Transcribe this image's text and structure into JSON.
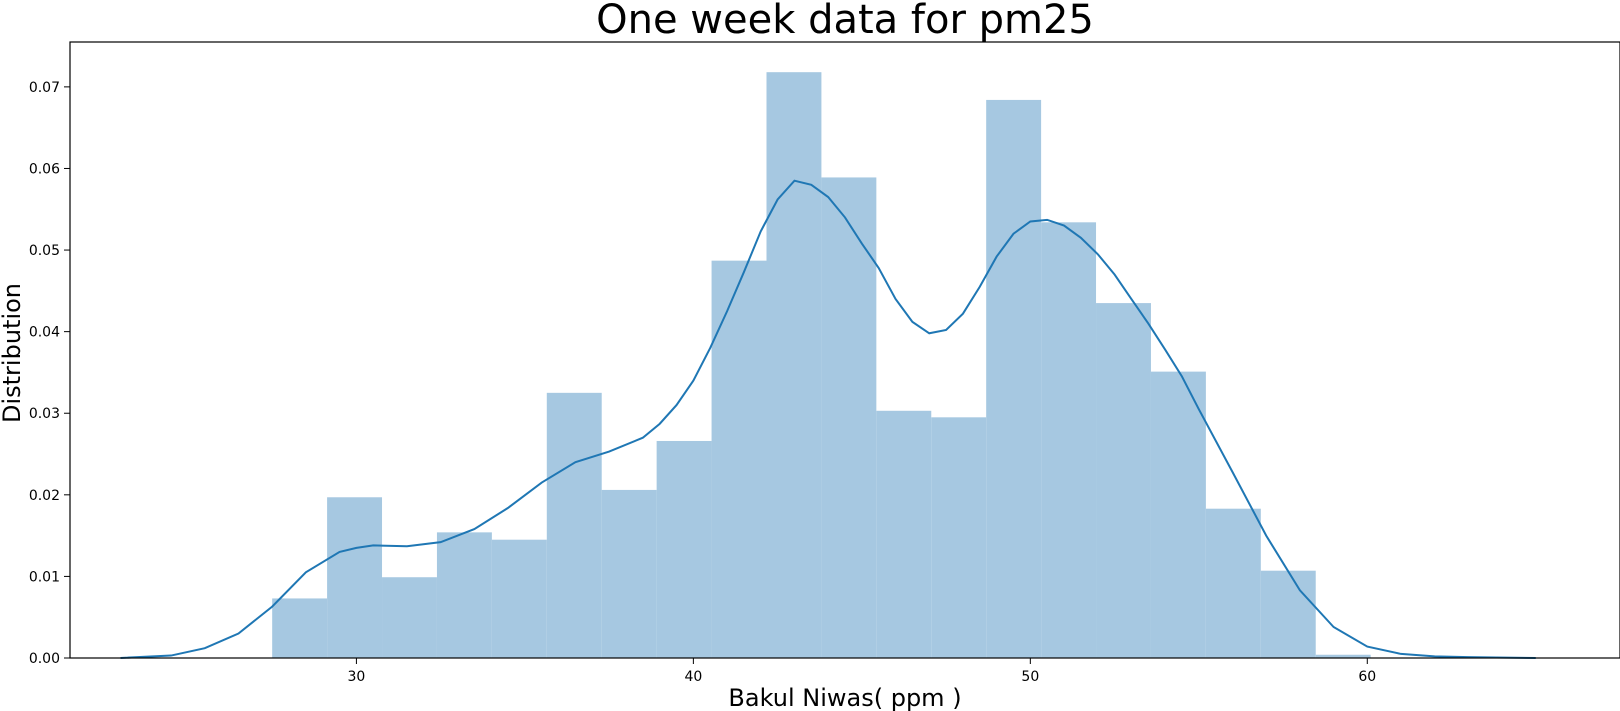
{
  "chart_data": {
    "type": "bar",
    "subtype": "histogram-with-kde",
    "title": "One week data for pm25",
    "xlabel": "Bakul Niwas( ppm )",
    "ylabel": "Distribution",
    "xlim": [
      21.5,
      67.5
    ],
    "ylim": [
      0,
      0.0755
    ],
    "x_ticks": [
      30,
      40,
      50,
      60
    ],
    "y_ticks": [
      0.0,
      0.01,
      0.02,
      0.03,
      0.04,
      0.05,
      0.06,
      0.07
    ],
    "x_tick_labels": [
      "30",
      "40",
      "50",
      "60"
    ],
    "y_tick_labels": [
      "0.00",
      "0.01",
      "0.02",
      "0.03",
      "0.04",
      "0.05",
      "0.06",
      "0.07"
    ],
    "grid": false,
    "legend": "none",
    "bins": [
      {
        "x0": 27.5,
        "x1": 29.13,
        "density": 0.0073
      },
      {
        "x0": 29.13,
        "x1": 30.76,
        "density": 0.0197
      },
      {
        "x0": 30.76,
        "x1": 32.39,
        "density": 0.0099
      },
      {
        "x0": 32.39,
        "x1": 34.02,
        "density": 0.0154
      },
      {
        "x0": 34.02,
        "x1": 35.65,
        "density": 0.0145
      },
      {
        "x0": 35.65,
        "x1": 37.28,
        "density": 0.0325
      },
      {
        "x0": 37.28,
        "x1": 38.91,
        "density": 0.0206
      },
      {
        "x0": 38.91,
        "x1": 40.54,
        "density": 0.0266
      },
      {
        "x0": 40.54,
        "x1": 42.17,
        "density": 0.0487
      },
      {
        "x0": 42.17,
        "x1": 43.8,
        "density": 0.0718
      },
      {
        "x0": 43.8,
        "x1": 45.43,
        "density": 0.0589
      },
      {
        "x0": 45.43,
        "x1": 47.06,
        "density": 0.0303
      },
      {
        "x0": 47.06,
        "x1": 48.69,
        "density": 0.0295
      },
      {
        "x0": 48.69,
        "x1": 50.32,
        "density": 0.0684
      },
      {
        "x0": 50.32,
        "x1": 51.95,
        "density": 0.0534
      },
      {
        "x0": 51.95,
        "x1": 53.58,
        "density": 0.0435
      },
      {
        "x0": 53.58,
        "x1": 55.21,
        "density": 0.0351
      },
      {
        "x0": 55.21,
        "x1": 56.84,
        "density": 0.0183
      },
      {
        "x0": 56.84,
        "x1": 58.47,
        "density": 0.0107
      },
      {
        "x0": 58.47,
        "x1": 60.1,
        "density": 0.0004
      }
    ],
    "kde": {
      "x": [
        23.0,
        24.5,
        25.5,
        26.5,
        27.5,
        28.5,
        29.5,
        30.0,
        30.5,
        31.5,
        32.5,
        33.5,
        34.5,
        35.5,
        36.5,
        37.5,
        38.5,
        39.0,
        39.5,
        40.0,
        40.5,
        41.0,
        41.5,
        42.0,
        42.5,
        43.0,
        43.5,
        44.0,
        44.5,
        45.0,
        45.5,
        46.0,
        46.5,
        47.0,
        47.5,
        48.0,
        48.5,
        49.0,
        49.5,
        50.0,
        50.5,
        51.0,
        51.5,
        52.0,
        52.5,
        53.0,
        53.5,
        54.0,
        54.5,
        55.0,
        56.0,
        57.0,
        58.0,
        59.0,
        60.0,
        61.0,
        62.0,
        63.0,
        65.0
      ],
      "y": [
        0.0,
        0.0003,
        0.0012,
        0.003,
        0.0063,
        0.0105,
        0.013,
        0.0135,
        0.0138,
        0.0137,
        0.0142,
        0.0158,
        0.0184,
        0.0215,
        0.024,
        0.0253,
        0.027,
        0.0287,
        0.031,
        0.034,
        0.038,
        0.0425,
        0.0473,
        0.0523,
        0.0562,
        0.0585,
        0.058,
        0.0565,
        0.054,
        0.0508,
        0.0478,
        0.044,
        0.0412,
        0.0398,
        0.0402,
        0.0422,
        0.0455,
        0.0492,
        0.052,
        0.0535,
        0.0537,
        0.053,
        0.0515,
        0.0495,
        0.047,
        0.044,
        0.041,
        0.0378,
        0.0345,
        0.0305,
        0.0228,
        0.015,
        0.0083,
        0.0038,
        0.0014,
        0.0005,
        0.0002,
        0.0001,
        0.0
      ]
    },
    "colors": {
      "bar_fill": "#a6c8e1",
      "kde_line": "#1f77b4",
      "axis": "#000000"
    }
  }
}
